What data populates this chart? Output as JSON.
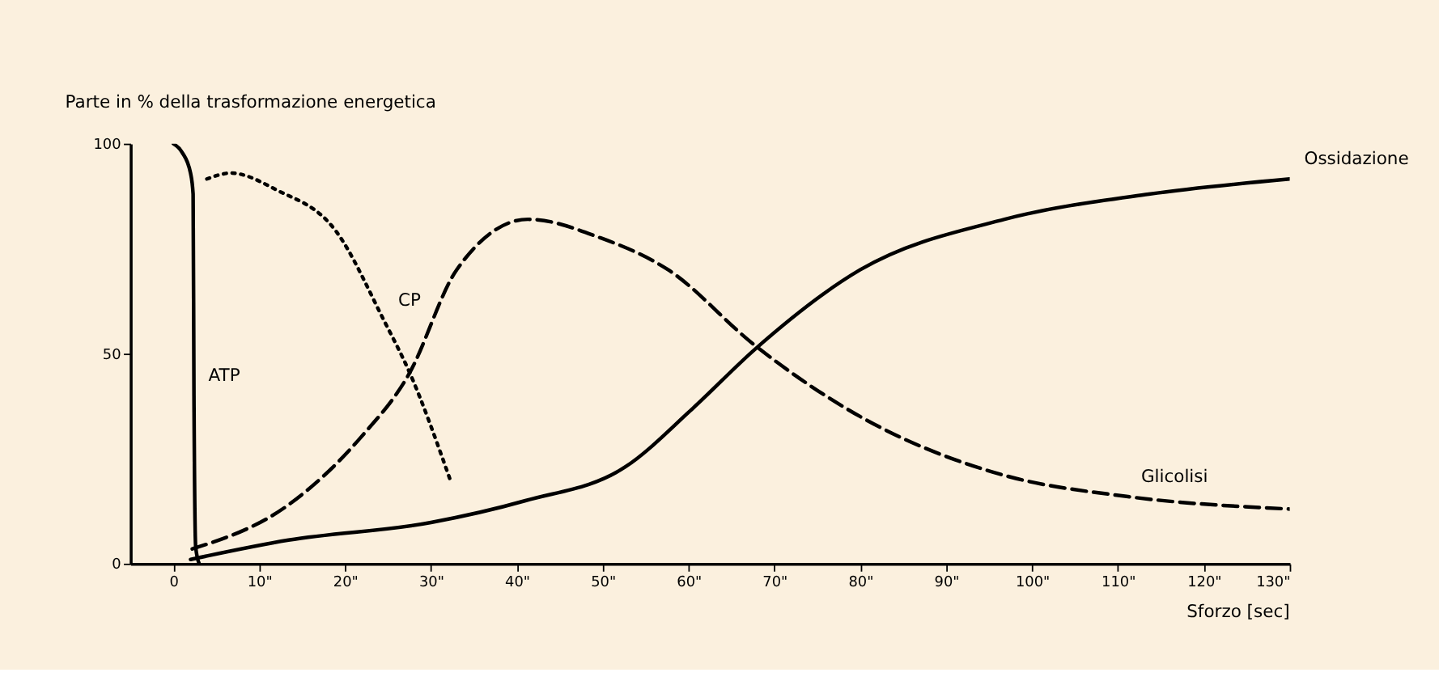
{
  "chart_data": {
    "type": "line",
    "ylabel": "Parte in % della trasformazione energetica",
    "xlabel": "Sforzo [sec]",
    "xlim": [
      -5,
      130
    ],
    "ylim": [
      0,
      100
    ],
    "xticks": [
      0,
      {
        "value": 10,
        "label": "10\""
      },
      {
        "value": 20,
        "label": "20\""
      },
      {
        "value": 30,
        "label": "30\""
      },
      {
        "value": 40,
        "label": "40\""
      },
      {
        "value": 50,
        "label": "50\""
      },
      {
        "value": 60,
        "label": "60\""
      },
      {
        "value": 70,
        "label": "70\""
      },
      {
        "value": 80,
        "label": "80\""
      },
      {
        "value": 90,
        "label": "90\""
      },
      {
        "value": 100,
        "label": "100\""
      },
      {
        "value": 110,
        "label": "110\""
      },
      {
        "value": 120,
        "label": "120\""
      },
      {
        "value": 130,
        "label": "130\""
      }
    ],
    "yticks": [
      0,
      50,
      100
    ],
    "grid": false,
    "marker": "none",
    "series": [
      {
        "name": "ATP",
        "color": "#000000",
        "line_style": "solid",
        "x": [
          0,
          1,
          2,
          2.3,
          2.4,
          2.6,
          3
        ],
        "values": [
          100,
          98,
          93,
          88,
          40,
          4,
          0
        ]
      },
      {
        "name": "CP",
        "color": "#000000",
        "line_style": "dotted",
        "x": [
          3.9,
          6.7,
          12,
          19,
          24.5,
          27.4,
          32.4
        ],
        "values": [
          91.6,
          93,
          89,
          79,
          58,
          46,
          19
        ]
      },
      {
        "name": "Glicolisi",
        "color": "#000000",
        "line_style": "dashed",
        "x": [
          2.2,
          13.4,
          21.8,
          27.4,
          33,
          41.3,
          49.7,
          57.6,
          67.7,
          80,
          96.8,
          111,
          130
        ],
        "values": [
          3.5,
          14,
          30,
          45,
          70,
          82,
          77.6,
          70,
          52,
          35,
          21,
          16,
          13
        ]
      },
      {
        "name": "Ossidazione",
        "color": "#000000",
        "line_style": "solid",
        "x": [
          2,
          13.4,
          30,
          41,
          52.6,
          60.5,
          67.7,
          80,
          96.8,
          113.6,
          130
        ],
        "values": [
          1,
          5.6,
          9.8,
          15,
          23,
          37,
          51,
          70,
          82,
          88,
          91.6
        ]
      }
    ]
  }
}
